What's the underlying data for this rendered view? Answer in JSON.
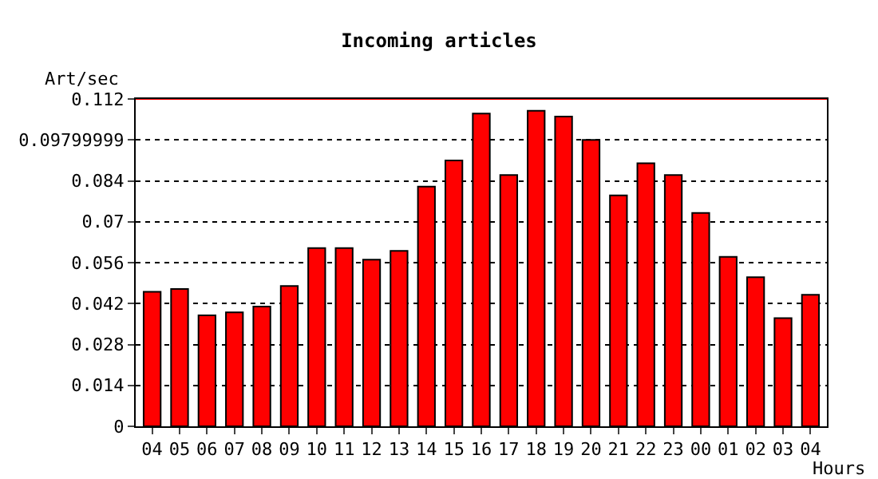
{
  "chart_data": {
    "type": "bar",
    "title": "Incoming articles",
    "xlabel": "Hours",
    "ylabel": "Art/sec",
    "categories": [
      "04",
      "05",
      "06",
      "07",
      "08",
      "09",
      "10",
      "11",
      "12",
      "13",
      "14",
      "15",
      "16",
      "17",
      "18",
      "19",
      "20",
      "21",
      "22",
      "23",
      "00",
      "01",
      "02",
      "03",
      "04"
    ],
    "values": [
      0.046,
      0.047,
      0.038,
      0.039,
      0.041,
      0.048,
      0.061,
      0.061,
      0.057,
      0.06,
      0.082,
      0.091,
      0.107,
      0.086,
      0.108,
      0.106,
      0.098,
      0.079,
      0.09,
      0.086,
      0.073,
      0.058,
      0.051,
      0.037,
      0.045
    ],
    "color": "#ff0000",
    "ylim": [
      0,
      0.112
    ],
    "yticks": [
      0,
      0.014,
      0.028,
      0.042,
      0.056,
      0.07,
      0.084,
      0.09799999,
      0.112
    ],
    "grid": "y",
    "line_style": "dotted",
    "ref_lines": [
      {
        "axis": "y",
        "value": 0.112,
        "color": "#ff0000"
      }
    ]
  }
}
